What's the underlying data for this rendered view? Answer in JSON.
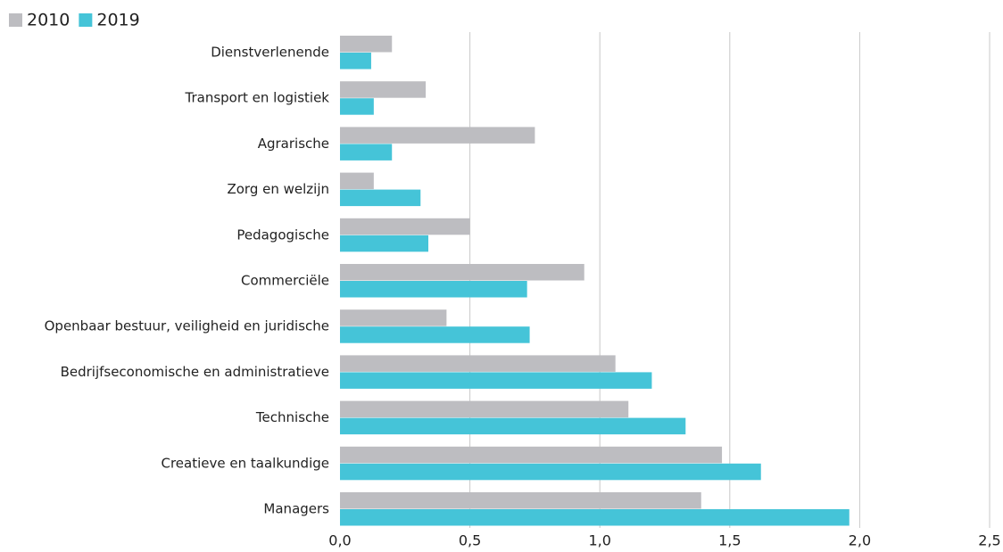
{
  "chart_data": {
    "type": "barh",
    "categories": [
      "Dienstverlenende",
      "Transport en logistiek",
      "Agrarische",
      "Zorg en welzijn",
      "Pedagogische",
      "Commerciële",
      "Openbaar bestuur, veiligheid en juridische",
      "Bedrijfseconomische en administratieve",
      "Technische",
      "Creatieve en taalkundige",
      "Managers"
    ],
    "series": [
      {
        "name": "2010",
        "color": "#bdbdc1",
        "values": [
          0.2,
          0.33,
          0.75,
          0.13,
          0.5,
          0.94,
          0.41,
          1.06,
          1.11,
          1.47,
          1.39
        ]
      },
      {
        "name": "2019",
        "color": "#45c4d8",
        "values": [
          0.12,
          0.13,
          0.2,
          0.31,
          0.34,
          0.72,
          0.73,
          1.2,
          1.33,
          1.62,
          1.96
        ]
      }
    ],
    "xlim": [
      0,
      2.5
    ],
    "xticks": [
      {
        "value": 0,
        "label": "0,0"
      },
      {
        "value": 0.5,
        "label": "0,5"
      },
      {
        "value": 1,
        "label": "1,0"
      },
      {
        "value": 1.5,
        "label": "1,5"
      },
      {
        "value": 2,
        "label": "2,0"
      },
      {
        "value": 2.5,
        "label": "2,5"
      }
    ],
    "grid": true,
    "legend": "top-left"
  }
}
